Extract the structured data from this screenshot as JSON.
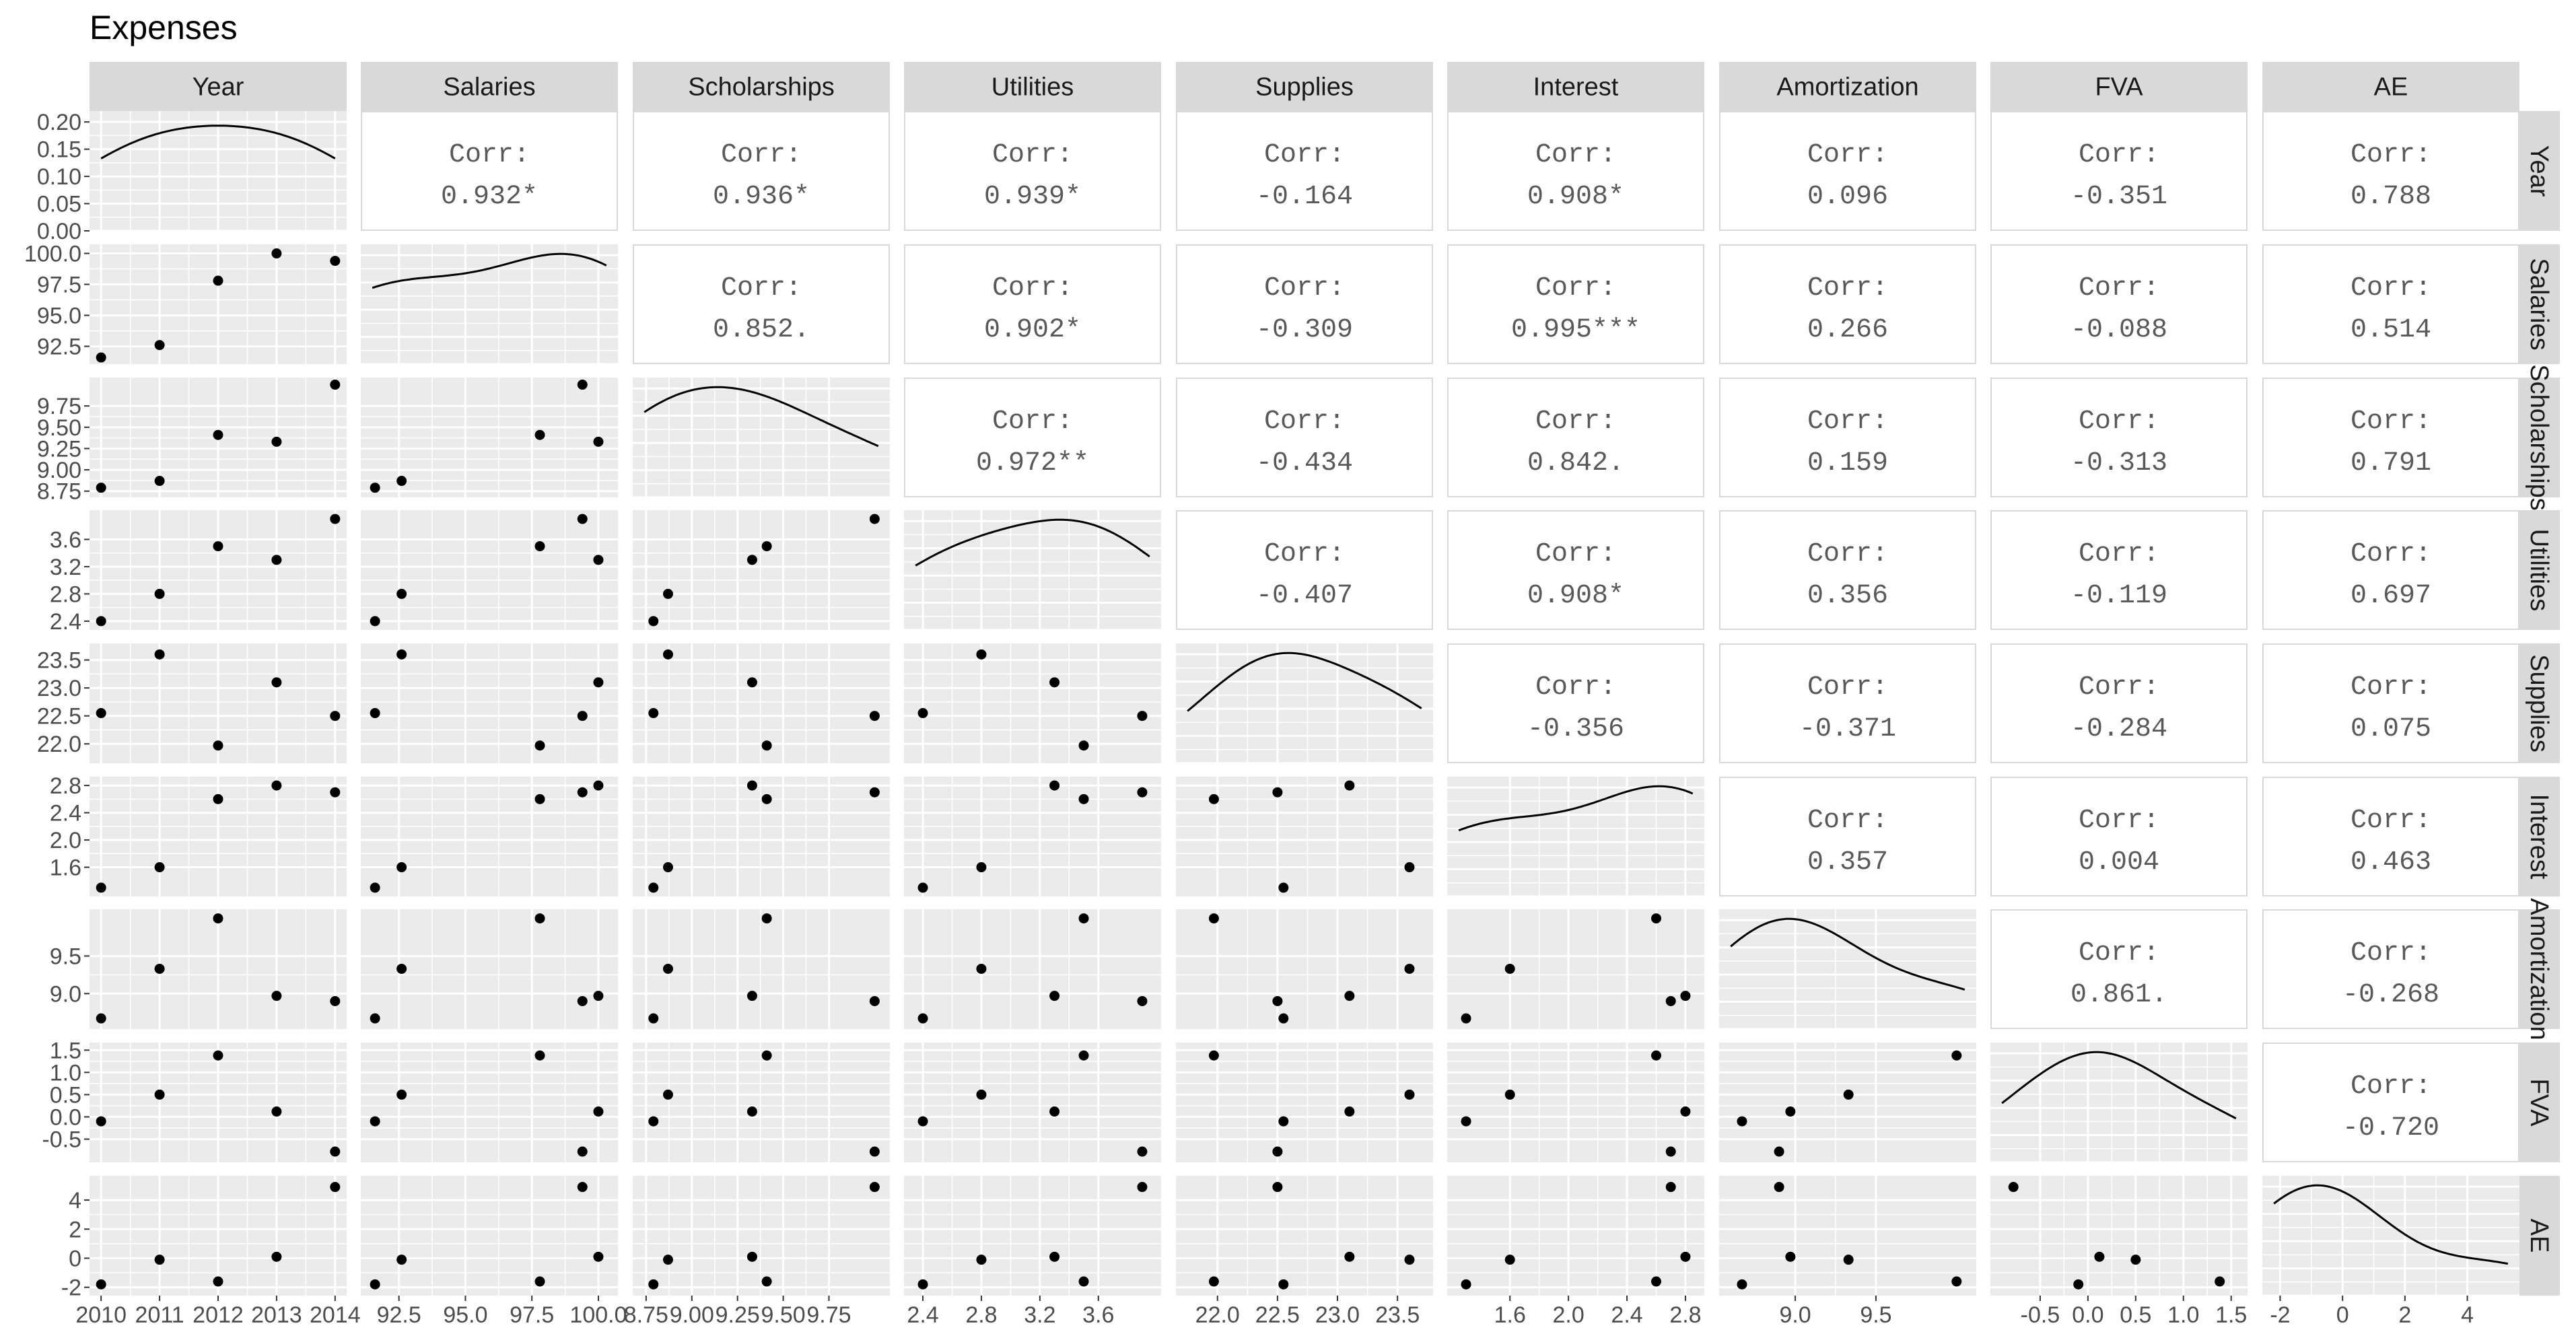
{
  "chart_data": {
    "type": "scatter-matrix",
    "title": "Expenses",
    "variables": [
      "Year",
      "Salaries",
      "Scholarships",
      "Utilities",
      "Supplies",
      "Interest",
      "Amortization",
      "FVA",
      "AE"
    ],
    "axis_ranges": {
      "Year": [
        2010,
        2014
      ],
      "Salaries": [
        91.5,
        100.3
      ],
      "Scholarships": [
        8.74,
        10.02
      ],
      "Utilities": [
        2.35,
        3.95
      ],
      "Supplies": [
        21.75,
        23.7
      ],
      "Interest": [
        1.25,
        2.85
      ],
      "Amortization": [
        8.6,
        10.05
      ],
      "FVA": [
        -0.9,
        1.55
      ],
      "AE": [
        -2.2,
        5.3
      ]
    },
    "x_ticks": {
      "Year": [
        2010,
        2011,
        2012,
        2013,
        2014
      ],
      "Salaries": [
        92.5,
        95.0,
        97.5,
        100.0
      ],
      "Scholarships": [
        8.75,
        9.0,
        9.25,
        9.5,
        9.75
      ],
      "Utilities": [
        2.4,
        2.8,
        3.2,
        3.6
      ],
      "Supplies": [
        22.0,
        22.5,
        23.0,
        23.5
      ],
      "Interest": [
        1.6,
        2.0,
        2.4,
        2.8
      ],
      "Amortization": [
        9.0,
        9.5
      ],
      "FVA": [
        -0.5,
        0.0,
        0.5,
        1.0,
        1.5
      ],
      "AE": [
        -2,
        0,
        2,
        4
      ]
    },
    "x_tick_labels": {
      "Year": [
        "2010",
        "2011",
        "2012",
        "2013",
        "2014"
      ],
      "Salaries": [
        "92.5",
        "95.0",
        "97.5",
        "100.0"
      ],
      "Scholarships": [
        "8.75",
        "9.00",
        "9.25",
        "9.50",
        "9.75"
      ],
      "Utilities": [
        "2.4",
        "2.8",
        "3.2",
        "3.6"
      ],
      "Supplies": [
        "22.0",
        "22.5",
        "23.0",
        "23.5"
      ],
      "Interest": [
        "1.6",
        "2.0",
        "2.4",
        "2.8"
      ],
      "Amortization": [
        "9.0",
        "9.5"
      ],
      "FVA": [
        "-0.5",
        "0.0",
        "0.5",
        "1.0",
        "1.5"
      ],
      "AE": [
        "-2",
        "0",
        "2",
        "4"
      ]
    },
    "y_ticks": {
      "Year": [
        0.0,
        0.05,
        0.1,
        0.15,
        0.2
      ],
      "Salaries": [
        92.5,
        95.0,
        97.5,
        100.0
      ],
      "Scholarships": [
        8.75,
        9.0,
        9.25,
        9.5,
        9.75
      ],
      "Utilities": [
        2.4,
        2.8,
        3.2,
        3.6
      ],
      "Supplies": [
        22.0,
        22.5,
        23.0,
        23.5
      ],
      "Interest": [
        1.6,
        2.0,
        2.4,
        2.8
      ],
      "Amortization": [
        9.0,
        9.5
      ],
      "FVA": [
        -0.5,
        0.0,
        0.5,
        1.0,
        1.5
      ],
      "AE": [
        -2,
        0,
        2,
        4
      ]
    },
    "y_tick_labels": {
      "Year": [
        "0.00",
        "0.05",
        "0.10",
        "0.15",
        "0.20"
      ],
      "Salaries": [
        "92.5",
        "95.0",
        "97.5",
        "100.0"
      ],
      "Scholarships": [
        "8.75",
        "9.00",
        "9.25",
        "9.50",
        "9.75"
      ],
      "Utilities": [
        "2.4",
        "2.8",
        "3.2",
        "3.6"
      ],
      "Supplies": [
        "22.0",
        "22.5",
        "23.0",
        "23.5"
      ],
      "Interest": [
        "1.6",
        "2.0",
        "2.4",
        "2.8"
      ],
      "Amortization": [
        "9.0",
        "9.5"
      ],
      "FVA": [
        "-0.5",
        "0.0",
        "0.5",
        "1.0",
        "1.5"
      ],
      "AE": [
        "-2",
        "0",
        "2",
        "4"
      ]
    },
    "density_ylim": [
      0,
      0.22
    ],
    "observations": {
      "Year": [
        2010,
        2011,
        2012,
        2013,
        2014
      ],
      "Salaries": [
        91.6,
        92.6,
        97.8,
        100.0,
        99.4
      ],
      "Scholarships": [
        8.79,
        8.87,
        9.41,
        9.33,
        10.0
      ],
      "Utilities": [
        2.4,
        2.8,
        3.5,
        3.3,
        3.9
      ],
      "Supplies": [
        22.55,
        23.6,
        21.97,
        23.1,
        22.5
      ],
      "Interest": [
        1.3,
        1.6,
        2.6,
        2.8,
        2.7
      ],
      "Amortization": [
        8.67,
        9.33,
        10.0,
        8.97,
        8.9
      ],
      "FVA": [
        -0.1,
        0.5,
        1.38,
        0.12,
        -0.78
      ],
      "AE": [
        -1.8,
        -0.1,
        -1.6,
        0.1,
        4.9
      ]
    },
    "correlation_label": "Corr:",
    "correlations": {
      "Year|Salaries": "0.932*",
      "Year|Scholarships": "0.936*",
      "Year|Utilities": "0.939*",
      "Year|Supplies": "-0.164",
      "Year|Interest": "0.908*",
      "Year|Amortization": "0.096",
      "Year|FVA": "-0.351",
      "Year|AE": "0.788",
      "Salaries|Scholarships": "0.852.",
      "Salaries|Utilities": "0.902*",
      "Salaries|Supplies": "-0.309",
      "Salaries|Interest": "0.995***",
      "Salaries|Amortization": "0.266",
      "Salaries|FVA": "-0.088",
      "Salaries|AE": "0.514",
      "Scholarships|Utilities": "0.972**",
      "Scholarships|Supplies": "-0.434",
      "Scholarships|Interest": "0.842.",
      "Scholarships|Amortization": "0.159",
      "Scholarships|FVA": "-0.313",
      "Scholarships|AE": "0.791",
      "Utilities|Supplies": "-0.407",
      "Utilities|Interest": "0.908*",
      "Utilities|Amortization": "0.356",
      "Utilities|FVA": "-0.119",
      "Utilities|AE": "0.697",
      "Supplies|Interest": "-0.356",
      "Supplies|Amortization": "-0.371",
      "Supplies|FVA": "-0.284",
      "Supplies|AE": "0.075",
      "Interest|Amortization": "0.357",
      "Interest|FVA": "0.004",
      "Interest|AE": "0.463",
      "Amortization|FVA": "0.861.",
      "Amortization|AE": "-0.268",
      "FVA|AE": "-0.720"
    },
    "grid": true,
    "colors": {
      "panel_background": "#ebebeb",
      "grid": "#ffffff",
      "strip_background": "#d9d9d9",
      "point": "#000000",
      "line": "#000000",
      "correlation_text": "#595959",
      "panel_border": "#d9d9d9"
    }
  }
}
